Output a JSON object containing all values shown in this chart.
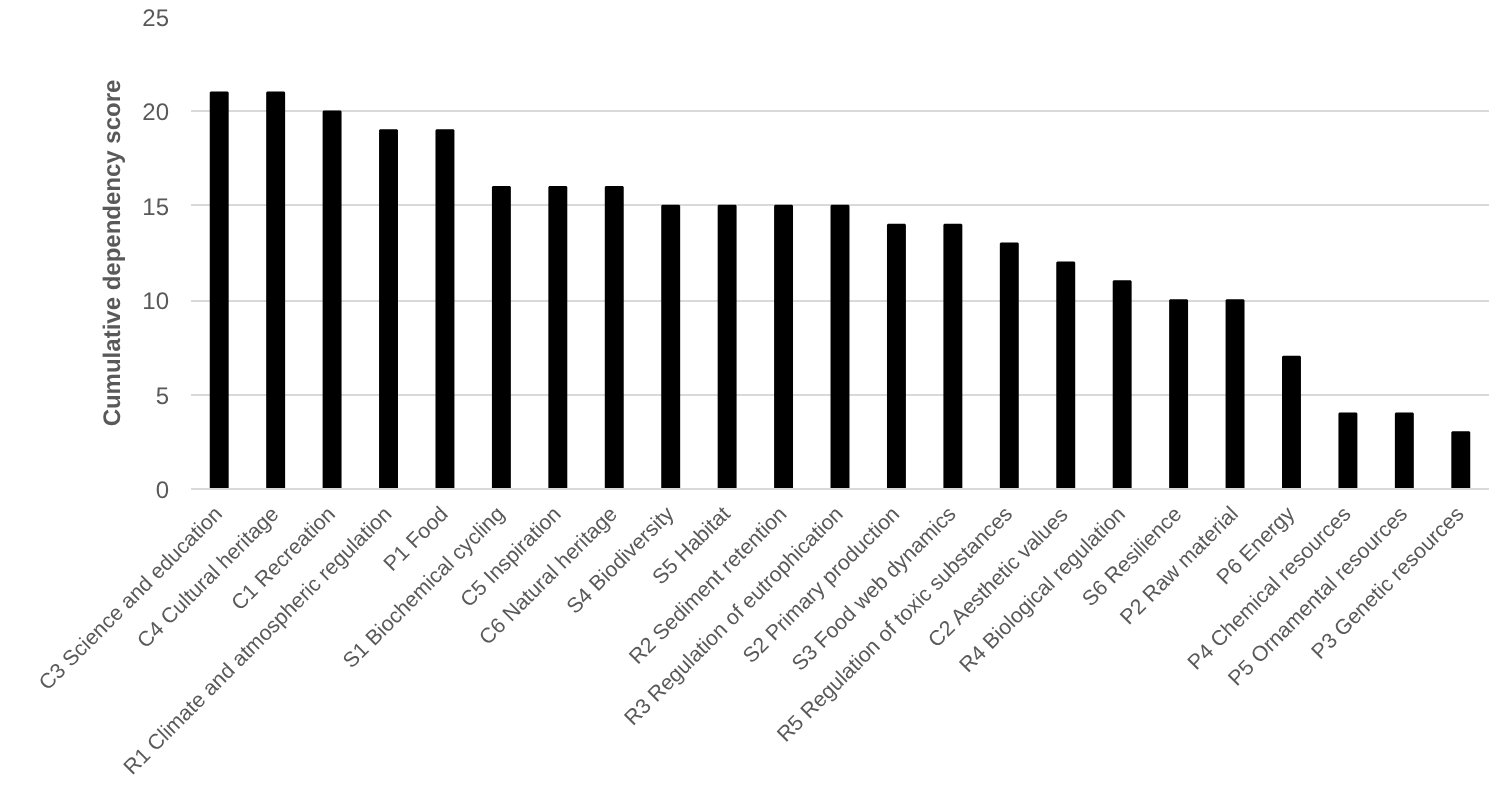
{
  "chart_data": {
    "type": "bar",
    "ylabel": "Cumulative dependency score",
    "categories": [
      "C3 Science and education",
      "C4 Cultural heritage",
      "C1 Recreation",
      "R1 Climate and atmospheric regulation",
      "P1 Food",
      "S1 Biochemical cycling",
      "C5 Inspiration",
      "C6 Natural heritage",
      "S4 Biodiversity",
      "S5 Habitat",
      "R2 Sediment retention",
      "R3 Regulation of eutrophication",
      "S2 Primary production",
      "S3 Food web dynamics",
      "R5 Regulation of toxic substances",
      "C2 Aesthetic values",
      "R4 Biological regulation",
      "S6 Resilience",
      "P2 Raw material",
      "P6 Energy",
      "P4 Chemical resources",
      "P5 Ornamental resources",
      "P3 Genetic resources"
    ],
    "values": [
      21,
      21,
      20,
      19,
      19,
      16,
      16,
      16,
      15,
      15,
      15,
      15,
      14,
      14,
      13,
      12,
      11,
      10,
      10,
      7,
      4,
      4,
      3
    ],
    "color": "#000000",
    "ylim": [
      0,
      25
    ],
    "yticks": [
      0,
      5,
      10,
      15,
      20,
      25
    ],
    "grid": "y"
  }
}
